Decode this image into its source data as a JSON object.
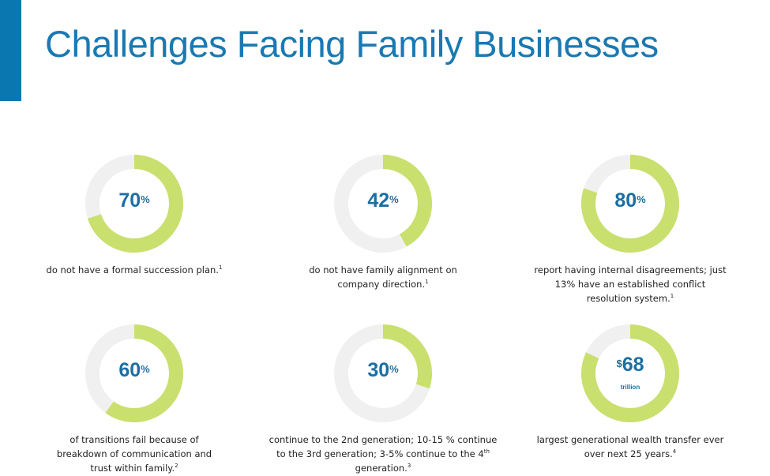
{
  "colors": {
    "accent": "#0a77b0",
    "title": "#1a79b2",
    "ring_fill": "#c9df6e",
    "ring_track": "#f0f0f0",
    "value_text": "#1a6fa3"
  },
  "slide": {
    "title": "Challenges Facing Family Businesses"
  },
  "stats": [
    {
      "value_prefix": "",
      "value": "70",
      "value_suffix": "%",
      "value_sub": "",
      "fraction": 0.7,
      "desc": "do not have a formal succession plan.",
      "ref": "1"
    },
    {
      "value_prefix": "",
      "value": "42",
      "value_suffix": "%",
      "value_sub": "",
      "fraction": 0.42,
      "desc": "do not have family alignment on company direction.",
      "ref": "1"
    },
    {
      "value_prefix": "",
      "value": "80",
      "value_suffix": "%",
      "value_sub": "",
      "fraction": 0.8,
      "desc": "report having internal disagreements; just 13% have an established conflict resolution system.",
      "ref": "1"
    },
    {
      "value_prefix": "",
      "value": "60",
      "value_suffix": "%",
      "value_sub": "",
      "fraction": 0.6,
      "desc": "of transitions fail because of breakdown of communication and trust within family.",
      "ref": "2"
    },
    {
      "value_prefix": "",
      "value": "30",
      "value_suffix": "%",
      "value_sub": "",
      "fraction": 0.3,
      "desc_pre": "continue to the 2nd generation; 10-15 % continue to the 3rd generation; 3-5% continue to the 4",
      "desc_sup": "th",
      "desc_post": " generation.",
      "ref": "3"
    },
    {
      "value_prefix": "$",
      "value": "68",
      "value_suffix": "",
      "value_sub": "trillion",
      "fraction": 0.82,
      "desc": "largest generational wealth transfer ever over next 25 years.",
      "ref": "4"
    }
  ]
}
